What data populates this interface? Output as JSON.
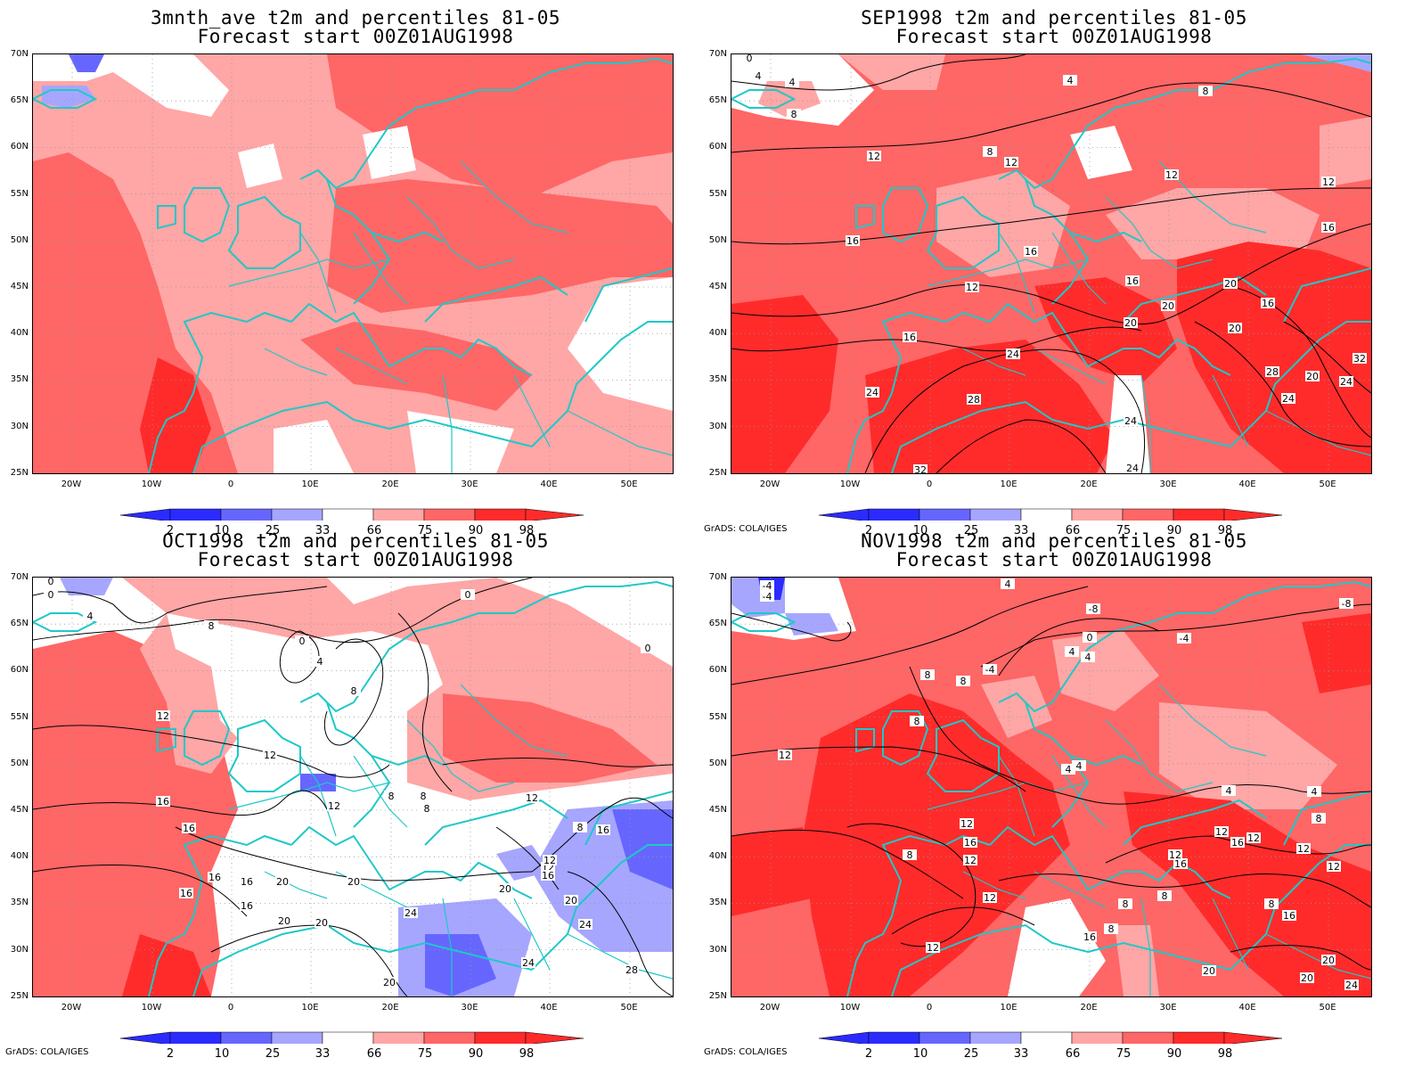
{
  "palette": {
    "blue_strong": "#2b2bff",
    "blue_mid": "#6666ff",
    "blue_light": "#a6a6ff",
    "red_light": "#ffa6a6",
    "red_mid": "#ff6666",
    "red_strong": "#ff2b2b",
    "coast": "#1fc8c8"
  },
  "colorbar": {
    "labels": [
      "2",
      "10",
      "25",
      "33",
      "66",
      "75",
      "90",
      "98"
    ]
  },
  "credit": "GrADS: COLA/IGES",
  "lat_labels": [
    "70N",
    "65N",
    "60N",
    "55N",
    "50N",
    "45N",
    "40N",
    "35N",
    "30N",
    "25N"
  ],
  "lon_labels": [
    "20W",
    "10W",
    "0",
    "10E",
    "20E",
    "30E",
    "40E",
    "50E"
  ],
  "panels": [
    {
      "title_line1": "3mnth_ave t2m and percentiles 81-05",
      "title_line2": "Forecast start 00Z01AUG1998",
      "show_credit": false,
      "contour_labels": []
    },
    {
      "title_line1": "SEP1998 t2m and percentiles 81-05",
      "title_line2": "Forecast start 00Z01AUG1998",
      "show_credit": true,
      "contour_labels": [
        "0",
        "4",
        "4",
        "8",
        "4",
        "8",
        "8",
        "12",
        "12",
        "12",
        "12",
        "16",
        "16",
        "12",
        "16",
        "16",
        "20",
        "16",
        "20",
        "20",
        "20",
        "16",
        "24",
        "24",
        "28",
        "24",
        "28",
        "32",
        "24",
        "24",
        "32",
        "20",
        "24"
      ]
    },
    {
      "title_line1": "OCT1998 t2m and percentiles 81-05",
      "title_line2": "Forecast start 00Z01AUG1998",
      "show_credit": true,
      "contour_labels": [
        "0",
        "0",
        "4",
        "8",
        "0",
        "4",
        "0",
        "0",
        "8",
        "12",
        "12",
        "8",
        "8",
        "8",
        "16",
        "12",
        "12",
        "16",
        "16",
        "12",
        "16",
        "16",
        "20",
        "20",
        "16",
        "20",
        "20",
        "24",
        "20",
        "24",
        "28",
        "16",
        "20",
        "24",
        "20",
        "8",
        "12",
        "16"
      ]
    },
    {
      "title_line1": "NOV1998 t2m and percentiles 81-05",
      "title_line2": "Forecast start 00Z01AUG1998",
      "show_credit": true,
      "contour_labels": [
        "-4",
        "-4",
        "4",
        "-8",
        "4",
        "0",
        "-4",
        "-4",
        "4",
        "8",
        "8",
        "8",
        "12",
        "4",
        "-8",
        "12",
        "4",
        "12",
        "16",
        "8",
        "16",
        "12",
        "8",
        "12",
        "12",
        "8",
        "12",
        "12",
        "16",
        "12",
        "16",
        "20",
        "20",
        "24",
        "16",
        "20",
        "4",
        "4",
        "8",
        "12",
        "8",
        "8"
      ]
    }
  ]
}
